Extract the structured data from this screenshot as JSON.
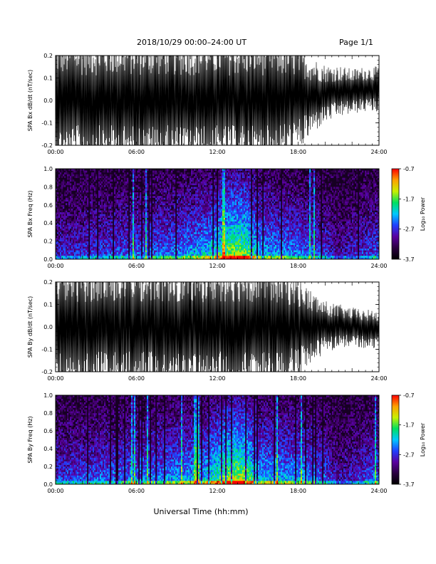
{
  "header": {
    "title": "2018/10/29  00:00–24:00 UT",
    "page_label": "Page 1/1"
  },
  "footer": {
    "xlabel": "Universal Time (hh:mm)"
  },
  "colors": {
    "trace": "#000000",
    "colorbar": [
      "#000000",
      "#2a0040",
      "#5a00a0",
      "#2040ff",
      "#00c8ff",
      "#00e060",
      "#c8f000",
      "#ffa000",
      "#ff0000"
    ]
  },
  "chart_data": [
    {
      "type": "line",
      "ylabel": "SPA Bx dB/dt (nT/sec)",
      "x_range_hours": [
        0,
        24
      ],
      "xticks": [
        "00:00",
        "06:00",
        "12:00",
        "18:00",
        "24:00"
      ],
      "ylim": [
        -0.2,
        0.2
      ],
      "yticks": [
        "-0.2",
        "-0.1",
        "0.0",
        "0.1",
        "0.2"
      ],
      "series": [
        {
          "x_hours": [
            0,
            2,
            4,
            6,
            8,
            10,
            12,
            14,
            16,
            18,
            19,
            20,
            21,
            22,
            23,
            24
          ],
          "amplitude": [
            0.2,
            0.2,
            0.2,
            0.2,
            0.2,
            0.2,
            0.2,
            0.2,
            0.2,
            0.17,
            0.12,
            0.09,
            0.08,
            0.07,
            0.07,
            0.07
          ],
          "center": [
            0,
            0,
            0,
            0,
            0,
            0,
            0,
            0,
            0,
            0.01,
            0.02,
            0.03,
            0.04,
            0.04,
            0.05,
            0.05
          ]
        }
      ]
    },
    {
      "type": "heatmap",
      "ylabel": "SPA Bx Freq (Hz)",
      "x_range_hours": [
        0,
        24
      ],
      "xticks": [
        "00:00",
        "06:00",
        "12:00",
        "18:00",
        "24:00"
      ],
      "ylim": [
        0,
        1.0
      ],
      "yticks": [
        "0.0",
        "0.2",
        "0.4",
        "0.6",
        "0.8",
        "1.0"
      ],
      "colorbar": {
        "label": "Log₁₀ Power",
        "range": [
          -3.7,
          -0.7
        ],
        "ticks": [
          "-0.7",
          "-1.7",
          "-2.7",
          "-3.7"
        ]
      },
      "activity_hours": [
        0,
        3,
        6,
        9,
        11,
        12,
        13,
        14,
        15,
        16,
        18,
        20,
        21,
        22,
        24
      ],
      "activity_level": [
        0.35,
        0.4,
        0.45,
        0.5,
        0.6,
        0.7,
        0.85,
        0.85,
        0.6,
        0.55,
        0.5,
        0.4,
        0.3,
        0.35,
        0.45
      ]
    },
    {
      "type": "line",
      "ylabel": "SPA By dB/dt (nT/sec)",
      "x_range_hours": [
        0,
        24
      ],
      "xticks": [
        "00:00",
        "06:00",
        "12:00",
        "18:00",
        "24:00"
      ],
      "ylim": [
        -0.2,
        0.2
      ],
      "yticks": [
        "-0.2",
        "-0.1",
        "0.0",
        "0.1",
        "0.2"
      ],
      "series": [
        {
          "x_hours": [
            0,
            2,
            4,
            6,
            8,
            10,
            12,
            14,
            16,
            18,
            19,
            20,
            21,
            22,
            23,
            24
          ],
          "amplitude": [
            0.2,
            0.2,
            0.2,
            0.2,
            0.2,
            0.2,
            0.2,
            0.2,
            0.2,
            0.16,
            0.11,
            0.08,
            0.07,
            0.06,
            0.06,
            0.06
          ],
          "center": [
            0,
            0,
            0,
            0,
            0,
            0,
            0,
            0,
            0,
            0,
            0,
            0,
            0,
            0,
            -0.01,
            -0.01
          ]
        }
      ]
    },
    {
      "type": "heatmap",
      "ylabel": "SPA By Freq (Hz)",
      "x_range_hours": [
        0,
        24
      ],
      "xticks": [
        "00:00",
        "06:00",
        "12:00",
        "18:00",
        "24:00"
      ],
      "ylim": [
        0,
        1.0
      ],
      "yticks": [
        "0.0",
        "0.2",
        "0.4",
        "0.6",
        "0.8",
        "1.0"
      ],
      "colorbar": {
        "label": "Log₁₀ Power",
        "range": [
          -3.7,
          -0.7
        ],
        "ticks": [
          "-0.7",
          "-1.7",
          "-2.7",
          "-3.7"
        ]
      },
      "activity_hours": [
        0,
        3,
        6,
        9,
        11,
        12,
        13,
        14,
        15,
        16,
        18,
        20,
        21,
        22,
        24
      ],
      "activity_level": [
        0.4,
        0.45,
        0.5,
        0.55,
        0.6,
        0.75,
        0.9,
        0.9,
        0.6,
        0.6,
        0.55,
        0.45,
        0.3,
        0.35,
        0.5
      ]
    }
  ]
}
